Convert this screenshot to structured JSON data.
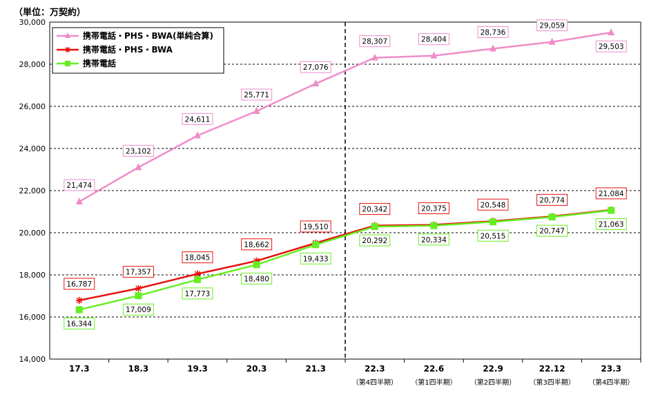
{
  "chart_data": {
    "type": "line",
    "unit_label": "（単位：万契約）",
    "categories": [
      "17.3",
      "18.3",
      "19.3",
      "20.3",
      "21.3",
      "22.3",
      "22.6",
      "22.9",
      "22.12",
      "23.3"
    ],
    "sub_labels": [
      "",
      "",
      "",
      "",
      "",
      "（第4四半期）",
      "（第1四半期）",
      "（第2四半期）",
      "（第3四半期）",
      "（第4四半期）"
    ],
    "ylim": [
      14000,
      30000
    ],
    "yticks": [
      "14,000",
      "16,000",
      "18,000",
      "20,000",
      "22,000",
      "24,000",
      "26,000",
      "28,000",
      "30,000"
    ],
    "grid": true,
    "divider_after_category_index": 4,
    "legend_position": "top-left",
    "series": [
      {
        "name": "携帯電話・PHS・BWA(単純合算)",
        "values": [
          21474,
          23102,
          24611,
          25771,
          27076,
          28307,
          28404,
          28736,
          29059,
          29503
        ],
        "labels": [
          "21,474",
          "23,102",
          "24,611",
          "25,771",
          "27,076",
          "28,307",
          "28,404",
          "28,736",
          "29,059",
          "29,503"
        ],
        "color": "#f08cc8",
        "marker": "triangle",
        "label_position": [
          "above",
          "above",
          "above",
          "above",
          "above",
          "above",
          "above",
          "above",
          "above",
          "below"
        ]
      },
      {
        "name": "携帯電話・PHS・BWA",
        "values": [
          16787,
          17357,
          18045,
          18662,
          19510,
          20342,
          20375,
          20548,
          20774,
          21084
        ],
        "labels": [
          "16,787",
          "17,357",
          "18,045",
          "18,662",
          "19,510",
          "20,342",
          "20,375",
          "20,548",
          "20,774",
          "21,084"
        ],
        "color": "#e8100c",
        "marker": "star",
        "label_position": [
          "above",
          "above",
          "above",
          "above",
          "above",
          "above",
          "above",
          "above",
          "above",
          "above"
        ]
      },
      {
        "name": "携帯電話",
        "values": [
          16344,
          17009,
          17773,
          18480,
          19433,
          20292,
          20334,
          20515,
          20747,
          21063
        ],
        "labels": [
          "16,344",
          "17,009",
          "17,773",
          "18,480",
          "19,433",
          "20,292",
          "20,334",
          "20,515",
          "20,747",
          "21,063"
        ],
        "color": "#66ee22",
        "marker": "square",
        "label_position": [
          "below",
          "below",
          "below",
          "below",
          "below",
          "below",
          "below",
          "below",
          "below",
          "below"
        ]
      }
    ]
  }
}
